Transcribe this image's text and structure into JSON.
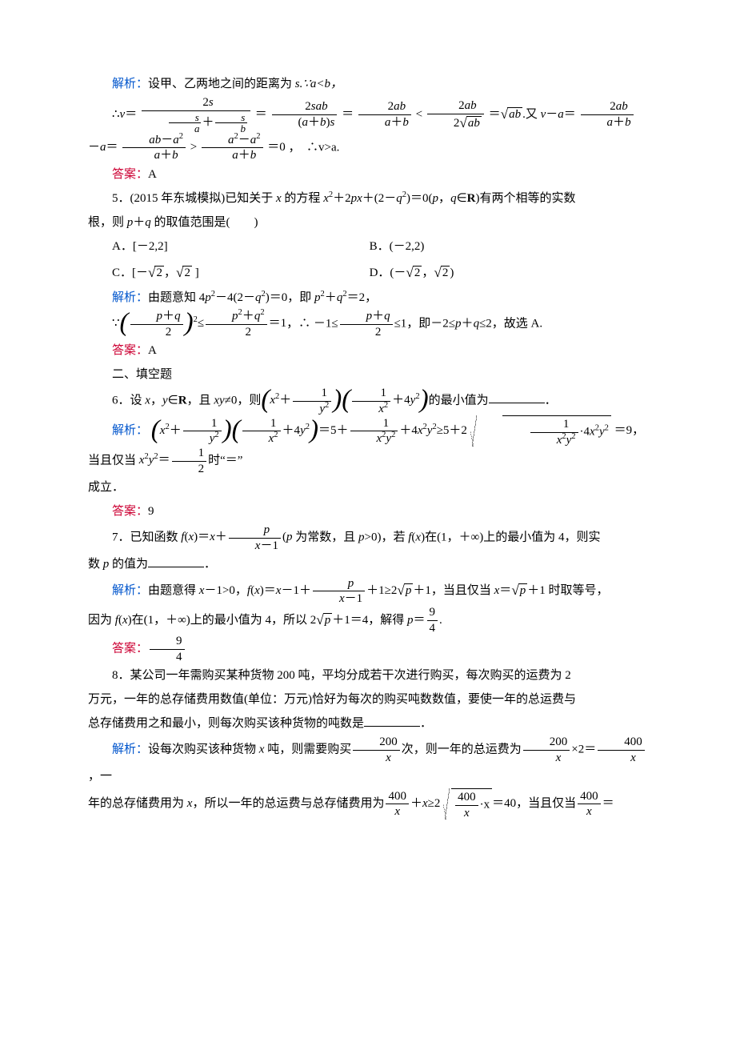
{
  "colors": {
    "blue": "#0055cc",
    "red": "#cc0033",
    "text": "#000000",
    "bg": "#ffffff"
  },
  "labels": {
    "analysis": "解析：",
    "answer": "答案："
  },
  "q4": {
    "analysis_intro": "设甲、乙两地之间的距离为 ",
    "s_setup": "s.∵a<b，",
    "conclusion_tail": "，　∴v>a.",
    "answer": "A"
  },
  "q5": {
    "stem1": "5．(2015 年东城模拟)已知关于 ",
    "stem2": " 的方程 ",
    "stem3": "有两个相等的实数",
    "line2_pre": "根，则 ",
    "line2_post": " 的取值范围是(　　)",
    "optA": "A．[－2,2]",
    "optB": "B．(－2,2)",
    "optC_pre": "C．[－",
    "optC_post": " ]",
    "optD_pre": "D．(－",
    "optD_post": ")",
    "analysis_text1": "由题意知 4",
    "analysis_text2": "，即 ",
    "analysis_text3": "，",
    "line4_mid": "，∴ －1≤",
    "line4_end": "≤1，即－2≤",
    "line4_tail": "≤2，故选 A.",
    "answer": "A"
  },
  "section2": "二、填空题",
  "q6": {
    "stem1": "6．设 ",
    "stem2": "，且 ",
    "stem3": "≠0，则",
    "stem4": "的最小值为",
    "analysis_tail1": "，当且仅当 ",
    "analysis_tail2": "时“＝”",
    "line_end": "成立．",
    "answer": "9"
  },
  "q7": {
    "stem1": "7．已知函数 ",
    "stem2": " 为常数，且 ",
    "stem3": ")，若 ",
    "stem4": "在(1，＋∞)上的最小值为 4，则实",
    "line2_pre": "数 ",
    "line2_post": " 的值为",
    "analysis1": "由题意得 ",
    "analysis2": "，当且仅当 ",
    "analysis3": " 时取等号，",
    "line4a": "因为 ",
    "line4b": "在(1，＋∞)上的最小值为 4，所以 2",
    "line4c": "＋1＝4，解得 ",
    "answer_frac_num": "9",
    "answer_frac_den": "4"
  },
  "q8": {
    "stem1": "8．某公司一年需购买某种货物 200 吨，平均分成若干次进行购买，每次购买的运费为 2",
    "stem2": "万元，一年的总存储费用数值(单位：万元)恰好为每次的购买吨数数值，要使一年的总运费与",
    "stem3": "总存储费用之和最小，则每次购买该种货物的吨数是",
    "analysis1": "设每次购买该种货物 ",
    "analysis2": " 吨，则需要购买",
    "analysis3": "次，则一年的总运费为",
    "analysis4": "，一",
    "line2a": "年的总存储费用为 ",
    "line2b": "，所以一年的总运费与总存储费用为",
    "line2c": "＝40，当且仅当",
    "line2d": "＝"
  }
}
